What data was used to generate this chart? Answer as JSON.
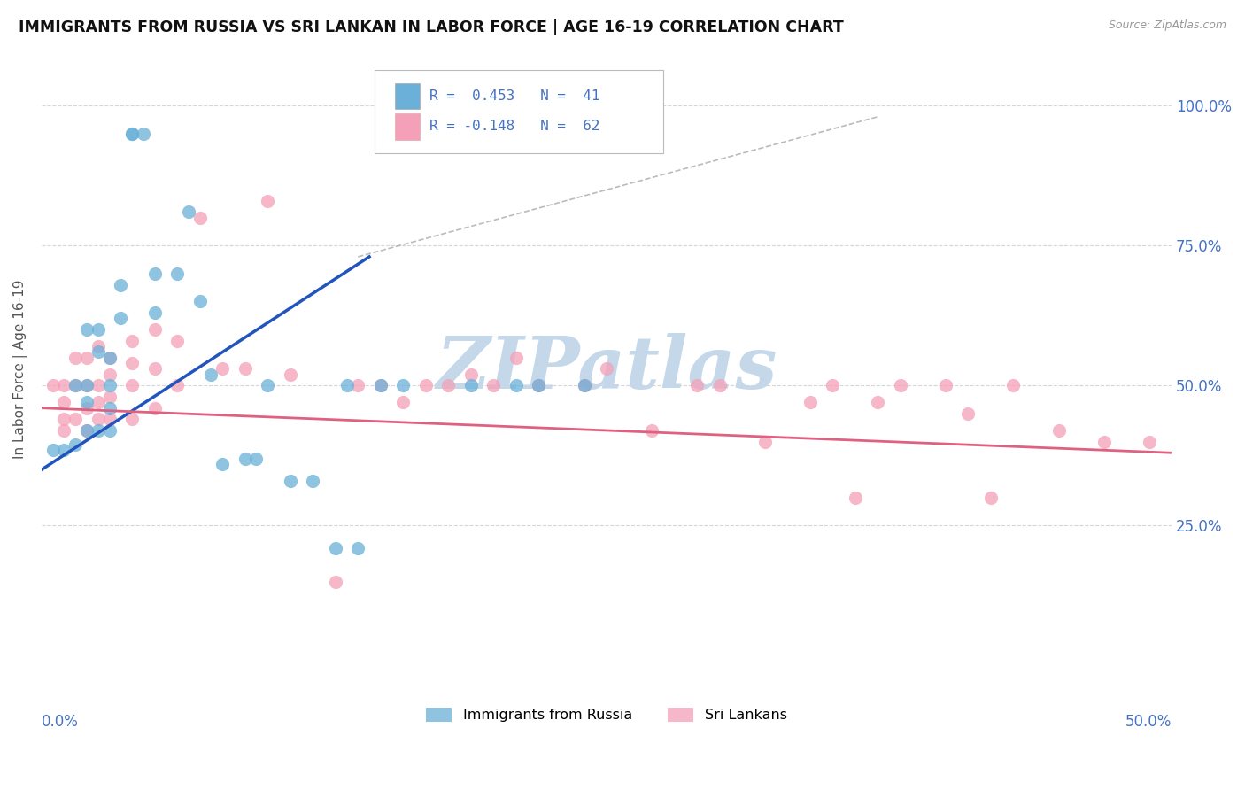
{
  "title": "IMMIGRANTS FROM RUSSIA VS SRI LANKAN IN LABOR FORCE | AGE 16-19 CORRELATION CHART",
  "source": "Source: ZipAtlas.com",
  "ylabel": "In Labor Force | Age 16-19",
  "ytick_labels": [
    "25.0%",
    "50.0%",
    "75.0%",
    "100.0%"
  ],
  "ytick_values": [
    0.25,
    0.5,
    0.75,
    1.0
  ],
  "xlim": [
    0.0,
    0.5
  ],
  "ylim": [
    -0.02,
    1.08
  ],
  "russia_color": "#6ab0d8",
  "srilanka_color": "#f4a0b8",
  "russia_line_color": "#2255bb",
  "srilanka_line_color": "#e06080",
  "russia_R": 0.453,
  "russia_N": 41,
  "srilanka_R": -0.148,
  "srilanka_N": 62,
  "russia_scatter_x": [
    0.005,
    0.01,
    0.015,
    0.015,
    0.02,
    0.02,
    0.02,
    0.02,
    0.025,
    0.025,
    0.025,
    0.03,
    0.03,
    0.03,
    0.03,
    0.035,
    0.035,
    0.04,
    0.04,
    0.045,
    0.05,
    0.05,
    0.06,
    0.065,
    0.07,
    0.075,
    0.08,
    0.09,
    0.095,
    0.1,
    0.11,
    0.12,
    0.13,
    0.135,
    0.14,
    0.15,
    0.16,
    0.19,
    0.21,
    0.22,
    0.24
  ],
  "russia_scatter_y": [
    0.385,
    0.385,
    0.5,
    0.395,
    0.6,
    0.5,
    0.47,
    0.42,
    0.6,
    0.56,
    0.42,
    0.55,
    0.5,
    0.46,
    0.42,
    0.68,
    0.62,
    0.95,
    0.95,
    0.95,
    0.7,
    0.63,
    0.7,
    0.81,
    0.65,
    0.52,
    0.36,
    0.37,
    0.37,
    0.5,
    0.33,
    0.33,
    0.21,
    0.5,
    0.21,
    0.5,
    0.5,
    0.5,
    0.5,
    0.5,
    0.5
  ],
  "srilanka_scatter_x": [
    0.005,
    0.01,
    0.01,
    0.01,
    0.01,
    0.015,
    0.015,
    0.015,
    0.02,
    0.02,
    0.02,
    0.02,
    0.025,
    0.025,
    0.025,
    0.025,
    0.03,
    0.03,
    0.03,
    0.03,
    0.04,
    0.04,
    0.04,
    0.04,
    0.05,
    0.05,
    0.05,
    0.06,
    0.06,
    0.07,
    0.08,
    0.09,
    0.1,
    0.11,
    0.13,
    0.14,
    0.15,
    0.16,
    0.17,
    0.18,
    0.19,
    0.2,
    0.21,
    0.22,
    0.24,
    0.25,
    0.27,
    0.29,
    0.3,
    0.32,
    0.34,
    0.35,
    0.36,
    0.37,
    0.38,
    0.4,
    0.41,
    0.42,
    0.43,
    0.45,
    0.47,
    0.49
  ],
  "srilanka_scatter_y": [
    0.5,
    0.5,
    0.47,
    0.44,
    0.42,
    0.55,
    0.5,
    0.44,
    0.55,
    0.5,
    0.46,
    0.42,
    0.57,
    0.5,
    0.47,
    0.44,
    0.55,
    0.52,
    0.48,
    0.44,
    0.58,
    0.54,
    0.5,
    0.44,
    0.6,
    0.53,
    0.46,
    0.58,
    0.5,
    0.8,
    0.53,
    0.53,
    0.83,
    0.52,
    0.15,
    0.5,
    0.5,
    0.47,
    0.5,
    0.5,
    0.52,
    0.5,
    0.55,
    0.5,
    0.5,
    0.53,
    0.42,
    0.5,
    0.5,
    0.4,
    0.47,
    0.5,
    0.3,
    0.47,
    0.5,
    0.5,
    0.45,
    0.3,
    0.5,
    0.42,
    0.4,
    0.4
  ],
  "russia_line_x": [
    0.0,
    0.145
  ],
  "russia_line_y": [
    0.35,
    0.73
  ],
  "srilanka_line_x": [
    0.0,
    0.5
  ],
  "srilanka_line_y": [
    0.46,
    0.38
  ],
  "dash_line_x": [
    0.14,
    0.37
  ],
  "dash_line_y": [
    0.73,
    0.98
  ],
  "watermark": "ZIPatlas",
  "watermark_color": "#c5d8ea",
  "background_color": "#ffffff",
  "grid_color": "#cccccc"
}
